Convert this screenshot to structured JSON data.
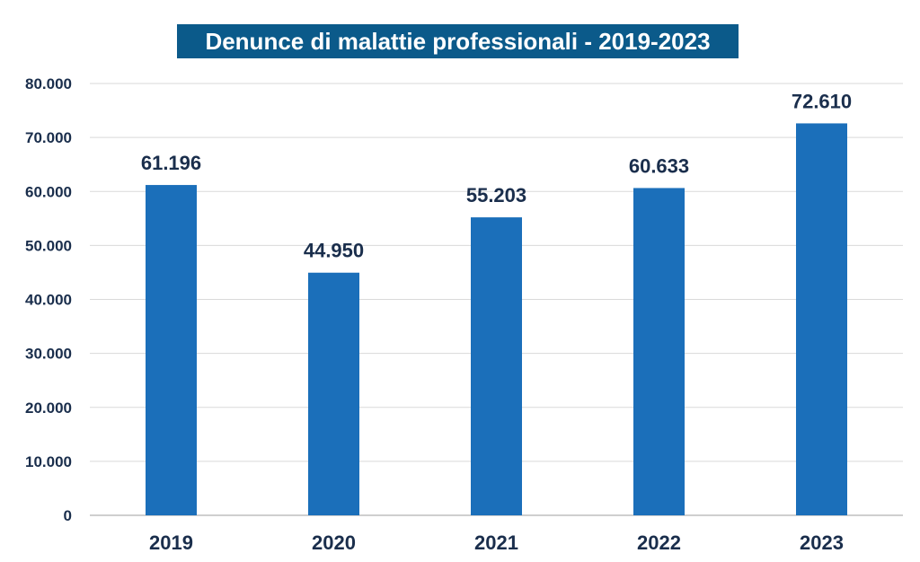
{
  "colors": {
    "bar": "#1b6fba",
    "title_background": "#0b5a8a",
    "title_text": "#ffffff",
    "axis_text": "#1a2e4c",
    "grid": "#d9d9d9",
    "baseline": "#bfbfbf"
  },
  "chart_data": {
    "type": "bar",
    "title": "Denunce di malattie professionali - 2019-2023",
    "categories": [
      "2019",
      "2020",
      "2021",
      "2022",
      "2023"
    ],
    "values": [
      61196,
      44950,
      55203,
      60633,
      72610
    ],
    "value_labels": [
      "61.196",
      "44.950",
      "55.203",
      "60.633",
      "72.610"
    ],
    "yticks": [
      0,
      10000,
      20000,
      30000,
      40000,
      50000,
      60000,
      70000,
      80000
    ],
    "ytick_labels": [
      "0",
      "10.000",
      "20.000",
      "30.000",
      "40.000",
      "50.000",
      "60.000",
      "70.000",
      "80.000"
    ],
    "ylim": [
      0,
      80000
    ],
    "xlabel": "",
    "ylabel": "",
    "grid": true,
    "legend": "none"
  }
}
